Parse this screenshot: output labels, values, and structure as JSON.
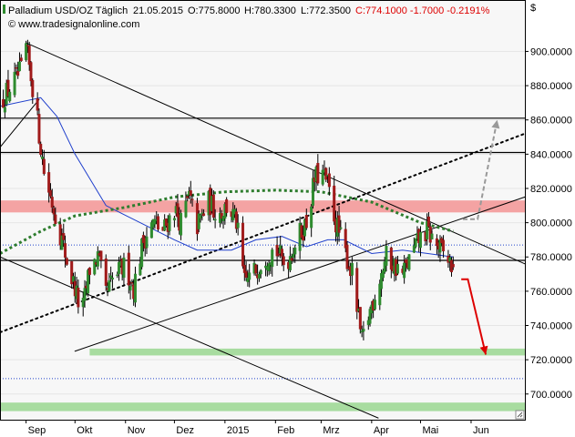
{
  "header": {
    "symbol_timeframe": "Palladium USD/OZ Täglich",
    "date": "21.05.2015",
    "open": "O:775.8000",
    "high": "H:780.3300",
    "low": "L:772.3500",
    "change": "C:774.1000 -1.7000 -0.2191%",
    "watermark": "© www.tradesignalonline.com",
    "currency": "$"
  },
  "colors": {
    "up_candle": "#2e8b2e",
    "down_candle": "#a01a1a",
    "moving_average": "#1f3fcc",
    "trend_ma": "#2e7d2e",
    "resistance_zone": "#f4a3a3",
    "support_zone": "#a8dca0",
    "forecast_down": "#dd0000",
    "forecast_up": "#999999"
  },
  "chart_data": {
    "type": "candlestick",
    "instrument": "Palladium USD/OZ",
    "timeframe": "Täglich",
    "ylim": [
      685,
      930
    ],
    "y_ticks": [
      700,
      720,
      740,
      760,
      780,
      800,
      820,
      840,
      860,
      880,
      900
    ],
    "y_tick_labels": [
      "700.0000",
      "720.0000",
      "740.0000",
      "760.0000",
      "780.0000",
      "800.0000",
      "820.0000",
      "840.0000",
      "860.0000",
      "880.0000",
      "900.0000"
    ],
    "x_labels": [
      {
        "label": "Sep",
        "date": "2014-09-01"
      },
      {
        "label": "Okt",
        "date": "2014-10-01"
      },
      {
        "label": "Nov",
        "date": "2014-11-01"
      },
      {
        "label": "Dez",
        "date": "2014-12-01"
      },
      {
        "label": "2015",
        "date": "2015-01-01"
      },
      {
        "label": "Feb",
        "date": "2015-02-01"
      },
      {
        "label": "Mrz",
        "date": "2015-03-01"
      },
      {
        "label": "Apr",
        "date": "2015-04-01"
      },
      {
        "label": "Mai",
        "date": "2015-05-01"
      },
      {
        "label": "Jun",
        "date": "2015-06-01"
      }
    ],
    "x_range": [
      "2014-08-16",
      "2015-07-04"
    ],
    "last_bar": {
      "date": "2015-05-21",
      "open": 775.8,
      "high": 780.33,
      "low": 772.35,
      "close": 774.1,
      "change": -1.7,
      "change_pct": -0.2191
    },
    "close_path": [
      [
        "2014-08-16",
        870
      ],
      [
        "2014-08-23",
        880
      ],
      [
        "2014-08-30",
        890
      ],
      [
        "2014-09-01",
        902
      ],
      [
        "2014-09-06",
        874
      ],
      [
        "2014-09-12",
        830
      ],
      [
        "2014-09-18",
        808
      ],
      [
        "2014-09-23",
        790
      ],
      [
        "2014-09-28",
        770
      ],
      [
        "2014-10-01",
        762
      ],
      [
        "2014-10-05",
        745
      ],
      [
        "2014-10-10",
        773
      ],
      [
        "2014-10-15",
        780
      ],
      [
        "2014-10-20",
        758
      ],
      [
        "2014-10-25",
        768
      ],
      [
        "2014-11-01",
        775
      ],
      [
        "2014-11-06",
        762
      ],
      [
        "2014-11-12",
        790
      ],
      [
        "2014-11-18",
        800
      ],
      [
        "2014-11-24",
        795
      ],
      [
        "2014-12-01",
        808
      ],
      [
        "2014-12-05",
        800
      ],
      [
        "2014-12-10",
        815
      ],
      [
        "2014-12-15",
        798
      ],
      [
        "2014-12-22",
        812
      ],
      [
        "2014-12-28",
        805
      ],
      [
        "2015-01-03",
        810
      ],
      [
        "2015-01-08",
        800
      ],
      [
        "2015-01-13",
        765
      ],
      [
        "2015-01-18",
        770
      ],
      [
        "2015-01-25",
        780
      ],
      [
        "2015-02-01",
        785
      ],
      [
        "2015-02-07",
        775
      ],
      [
        "2015-02-14",
        790
      ],
      [
        "2015-02-20",
        800
      ],
      [
        "2015-02-25",
        825
      ],
      [
        "2015-03-01",
        830
      ],
      [
        "2015-03-05",
        822
      ],
      [
        "2015-03-10",
        800
      ],
      [
        "2015-03-15",
        785
      ],
      [
        "2015-03-20",
        770
      ],
      [
        "2015-03-26",
        730
      ],
      [
        "2015-03-30",
        745
      ],
      [
        "2015-04-05",
        765
      ],
      [
        "2015-04-10",
        780
      ],
      [
        "2015-04-15",
        775
      ],
      [
        "2015-04-20",
        770
      ],
      [
        "2015-04-25",
        780
      ],
      [
        "2015-04-30",
        790
      ],
      [
        "2015-05-05",
        795
      ],
      [
        "2015-05-10",
        788
      ],
      [
        "2015-05-15",
        782
      ],
      [
        "2015-05-21",
        774.1
      ]
    ],
    "moving_average": [
      [
        "2014-08-16",
        868
      ],
      [
        "2014-09-10",
        873
      ],
      [
        "2014-09-20",
        862
      ],
      [
        "2014-10-01",
        840
      ],
      [
        "2014-10-20",
        810
      ],
      [
        "2014-11-10",
        800
      ],
      [
        "2014-12-01",
        790
      ],
      [
        "2014-12-15",
        784
      ],
      [
        "2015-01-05",
        784
      ],
      [
        "2015-01-20",
        790
      ],
      [
        "2015-02-05",
        792
      ],
      [
        "2015-02-20",
        786
      ],
      [
        "2015-03-05",
        790
      ],
      [
        "2015-03-15",
        790
      ],
      [
        "2015-04-01",
        782
      ],
      [
        "2015-04-20",
        784
      ],
      [
        "2015-05-21",
        780
      ]
    ],
    "trend_ma_dotted": [
      [
        "2014-08-16",
        782
      ],
      [
        "2014-09-10",
        795
      ],
      [
        "2014-10-01",
        804
      ],
      [
        "2014-11-01",
        809
      ],
      [
        "2014-12-01",
        815
      ],
      [
        "2015-01-01",
        818
      ],
      [
        "2015-02-01",
        819
      ],
      [
        "2015-03-01",
        818
      ],
      [
        "2015-04-01",
        812
      ],
      [
        "2015-05-01",
        800
      ],
      [
        "2015-05-21",
        795
      ]
    ],
    "horizontal_lines": [
      {
        "value": 861,
        "style": "solid"
      },
      {
        "value": 841,
        "style": "solid"
      },
      {
        "value": 778,
        "style": "solid"
      },
      {
        "value": 787,
        "style": "dotted"
      },
      {
        "value": 709,
        "style": "dotted"
      }
    ],
    "zones": [
      {
        "kind": "resistance",
        "from": 806,
        "to": 813,
        "start": "2014-08-16"
      },
      {
        "kind": "support",
        "from": 722.5,
        "to": 726.5,
        "start": "2014-10-10"
      },
      {
        "kind": "support",
        "from": 690,
        "to": 695,
        "start": "2014-08-16"
      }
    ],
    "trendlines": [
      {
        "style": "solid",
        "from": [
          "2014-09-01",
          905
        ],
        "to": [
          "2015-07-04",
          776
        ]
      },
      {
        "style": "solid",
        "from": [
          "2014-08-16",
          780
        ],
        "to": [
          "2015-04-05",
          686
        ]
      },
      {
        "style": "solid",
        "from": [
          "2014-10-01",
          725
        ],
        "to": [
          "2015-07-04",
          815
        ]
      },
      {
        "style": "dotted",
        "from": [
          "2014-08-16",
          736
        ],
        "to": [
          "2015-07-04",
          852
        ]
      },
      {
        "style": "solid",
        "from": [
          "2014-08-16",
          844
        ],
        "to": [
          "2014-09-09",
          872
        ]
      }
    ],
    "forecast": [
      {
        "direction": "down",
        "points": [
          [
            "2015-05-26",
            767
          ],
          [
            "2015-05-30",
            767
          ],
          [
            "2015-06-10",
            723
          ]
        ]
      },
      {
        "direction": "up",
        "points": [
          [
            "2015-05-27",
            802
          ],
          [
            "2015-06-05",
            802
          ],
          [
            "2015-06-17",
            860
          ]
        ]
      }
    ]
  }
}
